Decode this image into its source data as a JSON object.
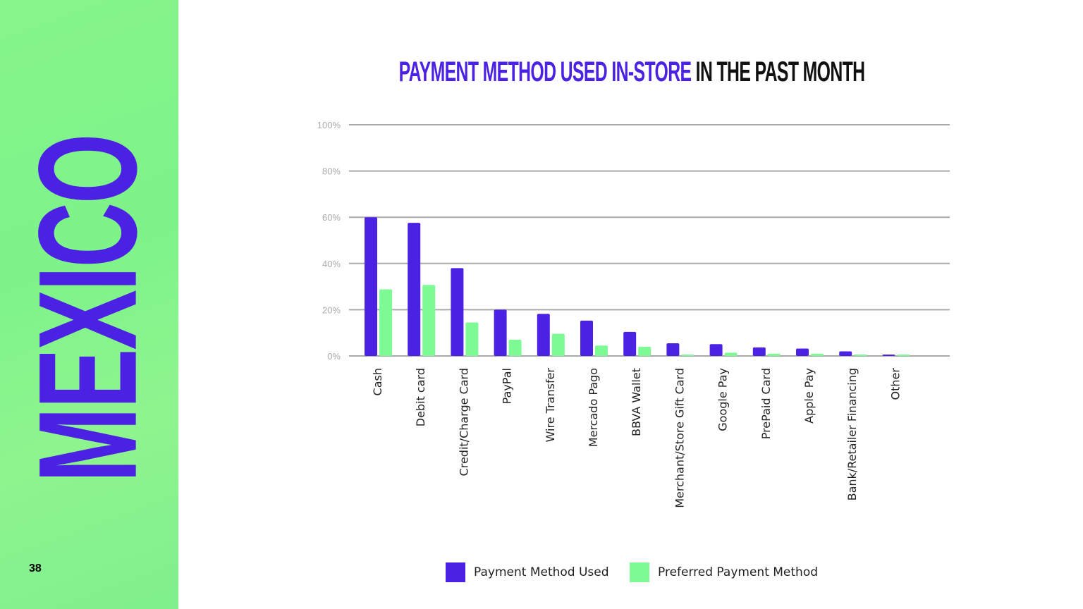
{
  "sidebar": {
    "country": "MEXICO",
    "page_number": "38",
    "background": "#7df38a",
    "accent": "#4b22e3"
  },
  "title": {
    "highlight": "PAYMENT METHOD USED IN-STORE",
    "rest": " IN THE PAST MONTH"
  },
  "chart_data": {
    "type": "bar",
    "title": "PAYMENT METHOD USED IN-STORE IN THE PAST MONTH",
    "categories": [
      "Cash",
      "Debit card",
      "Credit/Charge Card",
      "PayPal",
      "Wire Transfer",
      "Mercado Pago",
      "BBVA Wallet",
      "Merchant/Store Gift Card",
      "Google Pay",
      "PrePaid Card",
      "Apple Pay",
      "Bank/Retailer Financing",
      "Other"
    ],
    "series": [
      {
        "name": "Payment Method Used",
        "color": "#4b22e3",
        "values": [
          60,
          57.6,
          38,
          20,
          18.2,
          15.3,
          10.4,
          5.5,
          5.1,
          3.7,
          3.2,
          2.0,
          0.6
        ]
      },
      {
        "name": "Preferred Payment Method",
        "color": "#7dfa93",
        "values": [
          28.8,
          30.7,
          14.5,
          7,
          9.6,
          4.5,
          4.0,
          0.6,
          1.4,
          1.0,
          1.0,
          0.6,
          0.6
        ]
      }
    ],
    "ylim": [
      0,
      100
    ],
    "yticks": [
      "0%",
      "20%",
      "40%",
      "60%",
      "80%",
      "100%"
    ],
    "ytick_values": [
      0,
      20,
      40,
      60,
      80,
      100
    ],
    "grid": true,
    "legend": "bottom"
  }
}
